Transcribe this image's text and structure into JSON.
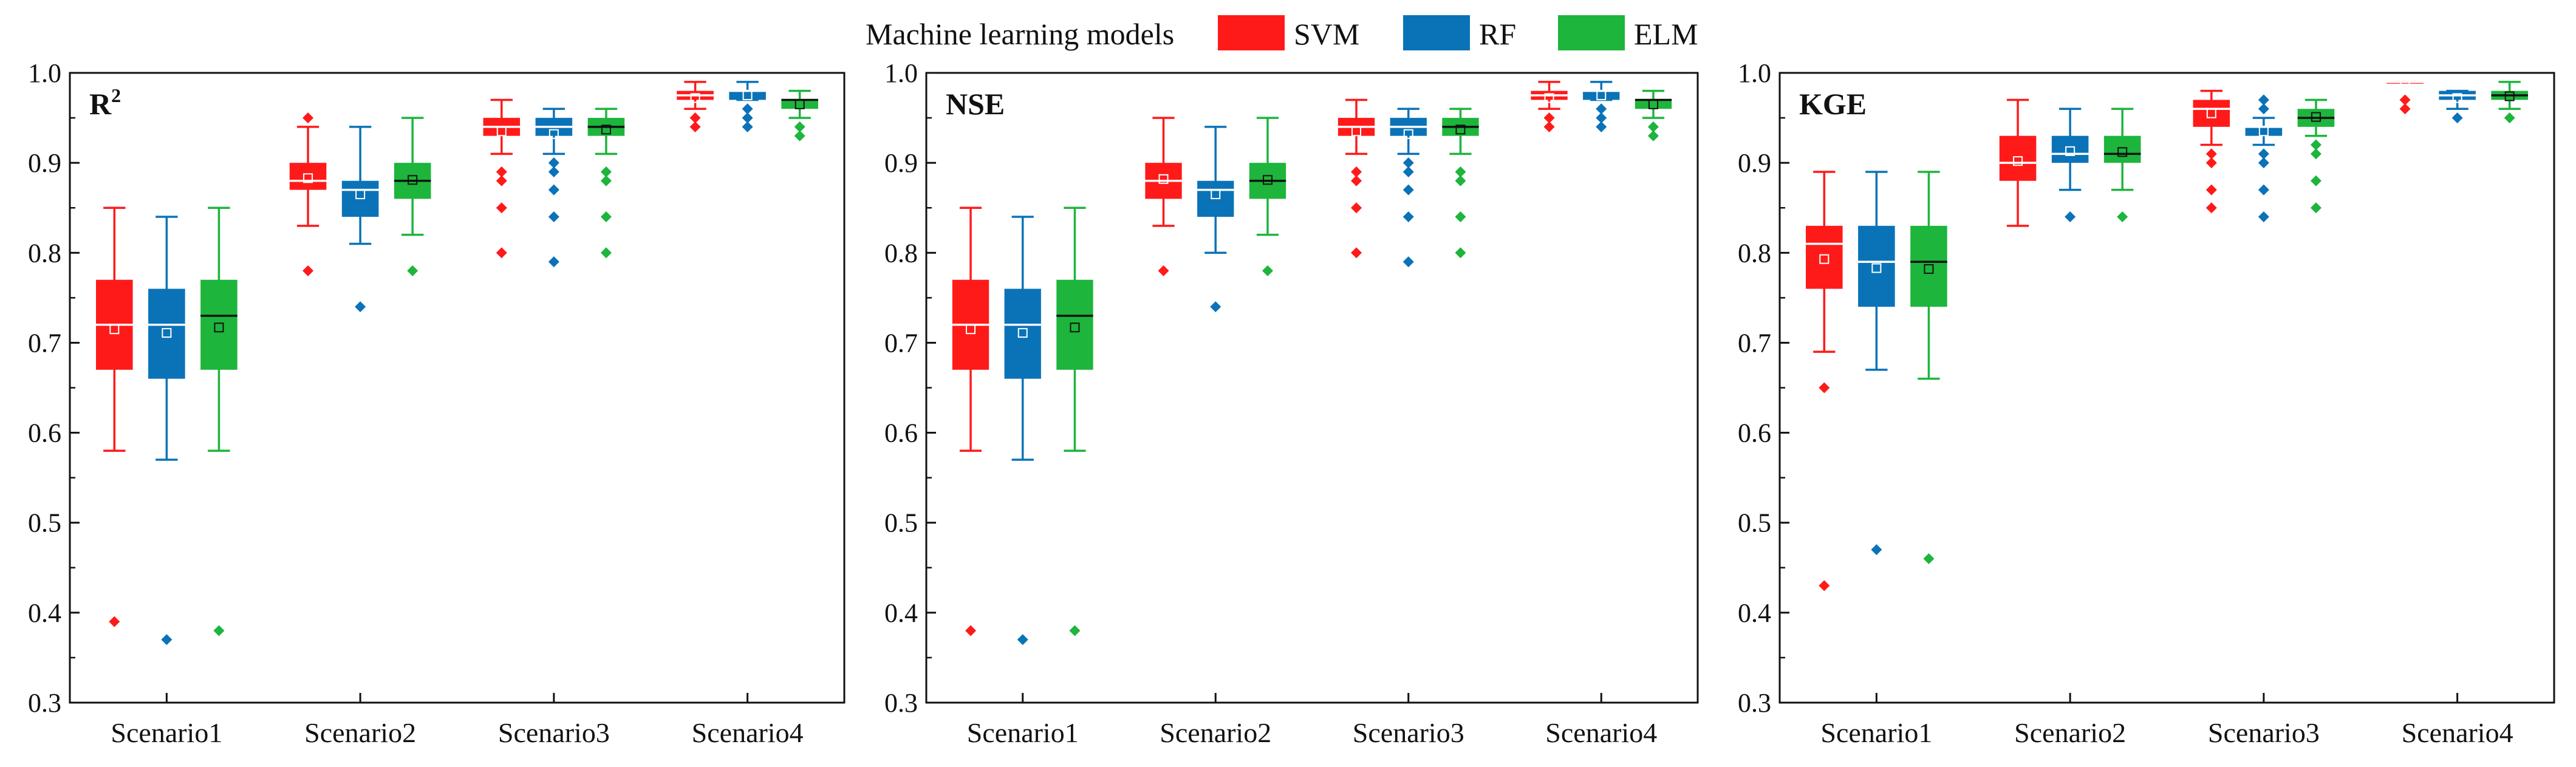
{
  "legend": {
    "title": "Machine learning models",
    "entries": [
      {
        "name": "SVM",
        "color": "#ff1a1a"
      },
      {
        "name": "RF",
        "color": "#0a73b8"
      },
      {
        "name": "ELM",
        "color": "#1db53c"
      }
    ]
  },
  "chart_data": [
    {
      "type": "box",
      "title": "R",
      "title_superscript": "2",
      "ylim": [
        0.3,
        1.0
      ],
      "yticks": [
        "0.3",
        "0.4",
        "0.5",
        "0.6",
        "0.7",
        "0.8",
        "0.9",
        "1.0"
      ],
      "categories": [
        "Scenario1",
        "Scenario2",
        "Scenario3",
        "Scenario4"
      ],
      "series": [
        {
          "name": "SVM",
          "boxes": [
            {
              "min": 0.58,
              "q1": 0.67,
              "median": 0.72,
              "q3": 0.77,
              "max": 0.85,
              "mean": 0.715,
              "outliers": [
                0.39
              ]
            },
            {
              "min": 0.83,
              "q1": 0.87,
              "median": 0.88,
              "q3": 0.9,
              "max": 0.94,
              "mean": 0.883,
              "outliers": [
                0.95,
                0.78
              ]
            },
            {
              "min": 0.91,
              "q1": 0.93,
              "median": 0.94,
              "q3": 0.95,
              "max": 0.97,
              "mean": 0.935,
              "outliers": [
                0.89,
                0.88,
                0.85,
                0.8
              ]
            },
            {
              "min": 0.96,
              "q1": 0.97,
              "median": 0.975,
              "q3": 0.98,
              "max": 0.99,
              "mean": 0.972,
              "outliers": [
                0.95,
                0.94
              ]
            }
          ]
        },
        {
          "name": "RF",
          "boxes": [
            {
              "min": 0.57,
              "q1": 0.66,
              "median": 0.72,
              "q3": 0.76,
              "max": 0.84,
              "mean": 0.711,
              "outliers": [
                0.37
              ]
            },
            {
              "min": 0.81,
              "q1": 0.84,
              "median": 0.87,
              "q3": 0.88,
              "max": 0.94,
              "mean": 0.865,
              "outliers": [
                0.74
              ]
            },
            {
              "min": 0.91,
              "q1": 0.93,
              "median": 0.94,
              "q3": 0.95,
              "max": 0.96,
              "mean": 0.932,
              "outliers": [
                0.9,
                0.89,
                0.87,
                0.84,
                0.79
              ]
            },
            {
              "min": 0.97,
              "q1": 0.97,
              "median": 0.98,
              "q3": 0.98,
              "max": 0.99,
              "mean": 0.975,
              "outliers": [
                0.96,
                0.95,
                0.94
              ]
            }
          ]
        },
        {
          "name": "ELM",
          "boxes": [
            {
              "min": 0.58,
              "q1": 0.67,
              "median": 0.73,
              "q3": 0.77,
              "max": 0.85,
              "mean": 0.717,
              "outliers": [
                0.38
              ]
            },
            {
              "min": 0.82,
              "q1": 0.86,
              "median": 0.88,
              "q3": 0.9,
              "max": 0.95,
              "mean": 0.881,
              "outliers": [
                0.78
              ]
            },
            {
              "min": 0.91,
              "q1": 0.93,
              "median": 0.94,
              "q3": 0.95,
              "max": 0.96,
              "mean": 0.937,
              "outliers": [
                0.89,
                0.88,
                0.84,
                0.8
              ]
            },
            {
              "min": 0.95,
              "q1": 0.96,
              "median": 0.97,
              "q3": 0.97,
              "max": 0.98,
              "mean": 0.965,
              "outliers": [
                0.94,
                0.93
              ]
            }
          ]
        }
      ]
    },
    {
      "type": "box",
      "title": "NSE",
      "title_superscript": "",
      "ylim": [
        0.3,
        1.0
      ],
      "yticks": [
        "0.3",
        "0.4",
        "0.5",
        "0.6",
        "0.7",
        "0.8",
        "0.9",
        "1.0"
      ],
      "categories": [
        "Scenario1",
        "Scenario2",
        "Scenario3",
        "Scenario4"
      ],
      "series": [
        {
          "name": "SVM",
          "boxes": [
            {
              "min": 0.58,
              "q1": 0.67,
              "median": 0.72,
              "q3": 0.77,
              "max": 0.85,
              "mean": 0.715,
              "outliers": [
                0.38
              ]
            },
            {
              "min": 0.83,
              "q1": 0.86,
              "median": 0.88,
              "q3": 0.9,
              "max": 0.95,
              "mean": 0.882,
              "outliers": [
                0.78
              ]
            },
            {
              "min": 0.91,
              "q1": 0.93,
              "median": 0.94,
              "q3": 0.95,
              "max": 0.97,
              "mean": 0.935,
              "outliers": [
                0.89,
                0.88,
                0.85,
                0.8
              ]
            },
            {
              "min": 0.96,
              "q1": 0.97,
              "median": 0.975,
              "q3": 0.98,
              "max": 0.99,
              "mean": 0.972,
              "outliers": [
                0.95,
                0.94
              ]
            }
          ]
        },
        {
          "name": "RF",
          "boxes": [
            {
              "min": 0.57,
              "q1": 0.66,
              "median": 0.72,
              "q3": 0.76,
              "max": 0.84,
              "mean": 0.711,
              "outliers": [
                0.37
              ]
            },
            {
              "min": 0.8,
              "q1": 0.84,
              "median": 0.87,
              "q3": 0.88,
              "max": 0.94,
              "mean": 0.865,
              "outliers": [
                0.74
              ]
            },
            {
              "min": 0.91,
              "q1": 0.93,
              "median": 0.94,
              "q3": 0.95,
              "max": 0.96,
              "mean": 0.932,
              "outliers": [
                0.9,
                0.89,
                0.87,
                0.84,
                0.79
              ]
            },
            {
              "min": 0.97,
              "q1": 0.97,
              "median": 0.98,
              "q3": 0.98,
              "max": 0.99,
              "mean": 0.975,
              "outliers": [
                0.96,
                0.95,
                0.94
              ]
            }
          ]
        },
        {
          "name": "ELM",
          "boxes": [
            {
              "min": 0.58,
              "q1": 0.67,
              "median": 0.73,
              "q3": 0.77,
              "max": 0.85,
              "mean": 0.717,
              "outliers": [
                0.38
              ]
            },
            {
              "min": 0.82,
              "q1": 0.86,
              "median": 0.88,
              "q3": 0.9,
              "max": 0.95,
              "mean": 0.881,
              "outliers": [
                0.78
              ]
            },
            {
              "min": 0.91,
              "q1": 0.93,
              "median": 0.94,
              "q3": 0.95,
              "max": 0.96,
              "mean": 0.937,
              "outliers": [
                0.89,
                0.88,
                0.84,
                0.8
              ]
            },
            {
              "min": 0.95,
              "q1": 0.96,
              "median": 0.97,
              "q3": 0.97,
              "max": 0.98,
              "mean": 0.965,
              "outliers": [
                0.94,
                0.93
              ]
            }
          ]
        }
      ]
    },
    {
      "type": "box",
      "title": "KGE",
      "title_superscript": "",
      "ylim": [
        0.3,
        1.0
      ],
      "yticks": [
        "0.3",
        "0.4",
        "0.5",
        "0.6",
        "0.7",
        "0.8",
        "0.9",
        "1.0"
      ],
      "categories": [
        "Scenario1",
        "Scenario2",
        "Scenario3",
        "Scenario4"
      ],
      "series": [
        {
          "name": "SVM",
          "boxes": [
            {
              "min": 0.69,
              "q1": 0.76,
              "median": 0.81,
              "q3": 0.83,
              "max": 0.89,
              "mean": 0.793,
              "outliers": [
                0.65,
                0.43
              ]
            },
            {
              "min": 0.83,
              "q1": 0.88,
              "median": 0.9,
              "q3": 0.93,
              "max": 0.97,
              "mean": 0.902,
              "outliers": []
            },
            {
              "min": 0.92,
              "q1": 0.94,
              "median": 0.96,
              "q3": 0.97,
              "max": 0.98,
              "mean": 0.955,
              "outliers": [
                0.91,
                0.9,
                0.87,
                0.85
              ]
            },
            {
              "min": 0.99,
              "q1": 0.99,
              "median": 0.99,
              "q3": 0.99,
              "max": 0.99,
              "mean": 0.99,
              "outliers": [
                0.97,
                0.96
              ]
            }
          ]
        },
        {
          "name": "RF",
          "boxes": [
            {
              "min": 0.67,
              "q1": 0.74,
              "median": 0.79,
              "q3": 0.83,
              "max": 0.89,
              "mean": 0.783,
              "outliers": [
                0.47
              ]
            },
            {
              "min": 0.87,
              "q1": 0.9,
              "median": 0.91,
              "q3": 0.93,
              "max": 0.96,
              "mean": 0.913,
              "outliers": [
                0.84
              ]
            },
            {
              "min": 0.92,
              "q1": 0.93,
              "median": 0.94,
              "q3": 0.94,
              "max": 0.95,
              "mean": 0.935,
              "outliers": [
                0.97,
                0.96,
                0.91,
                0.9,
                0.87,
                0.84
              ]
            },
            {
              "min": 0.96,
              "q1": 0.97,
              "median": 0.975,
              "q3": 0.98,
              "max": 0.98,
              "mean": 0.972,
              "outliers": [
                0.95
              ]
            }
          ]
        },
        {
          "name": "ELM",
          "boxes": [
            {
              "min": 0.66,
              "q1": 0.74,
              "median": 0.79,
              "q3": 0.83,
              "max": 0.89,
              "mean": 0.782,
              "outliers": [
                0.46
              ]
            },
            {
              "min": 0.87,
              "q1": 0.9,
              "median": 0.91,
              "q3": 0.93,
              "max": 0.96,
              "mean": 0.912,
              "outliers": [
                0.84
              ]
            },
            {
              "min": 0.93,
              "q1": 0.94,
              "median": 0.95,
              "q3": 0.96,
              "max": 0.97,
              "mean": 0.951,
              "outliers": [
                0.92,
                0.91,
                0.88,
                0.85
              ]
            },
            {
              "min": 0.96,
              "q1": 0.97,
              "median": 0.975,
              "q3": 0.98,
              "max": 0.99,
              "mean": 0.974,
              "outliers": [
                0.95
              ]
            }
          ]
        }
      ]
    }
  ]
}
